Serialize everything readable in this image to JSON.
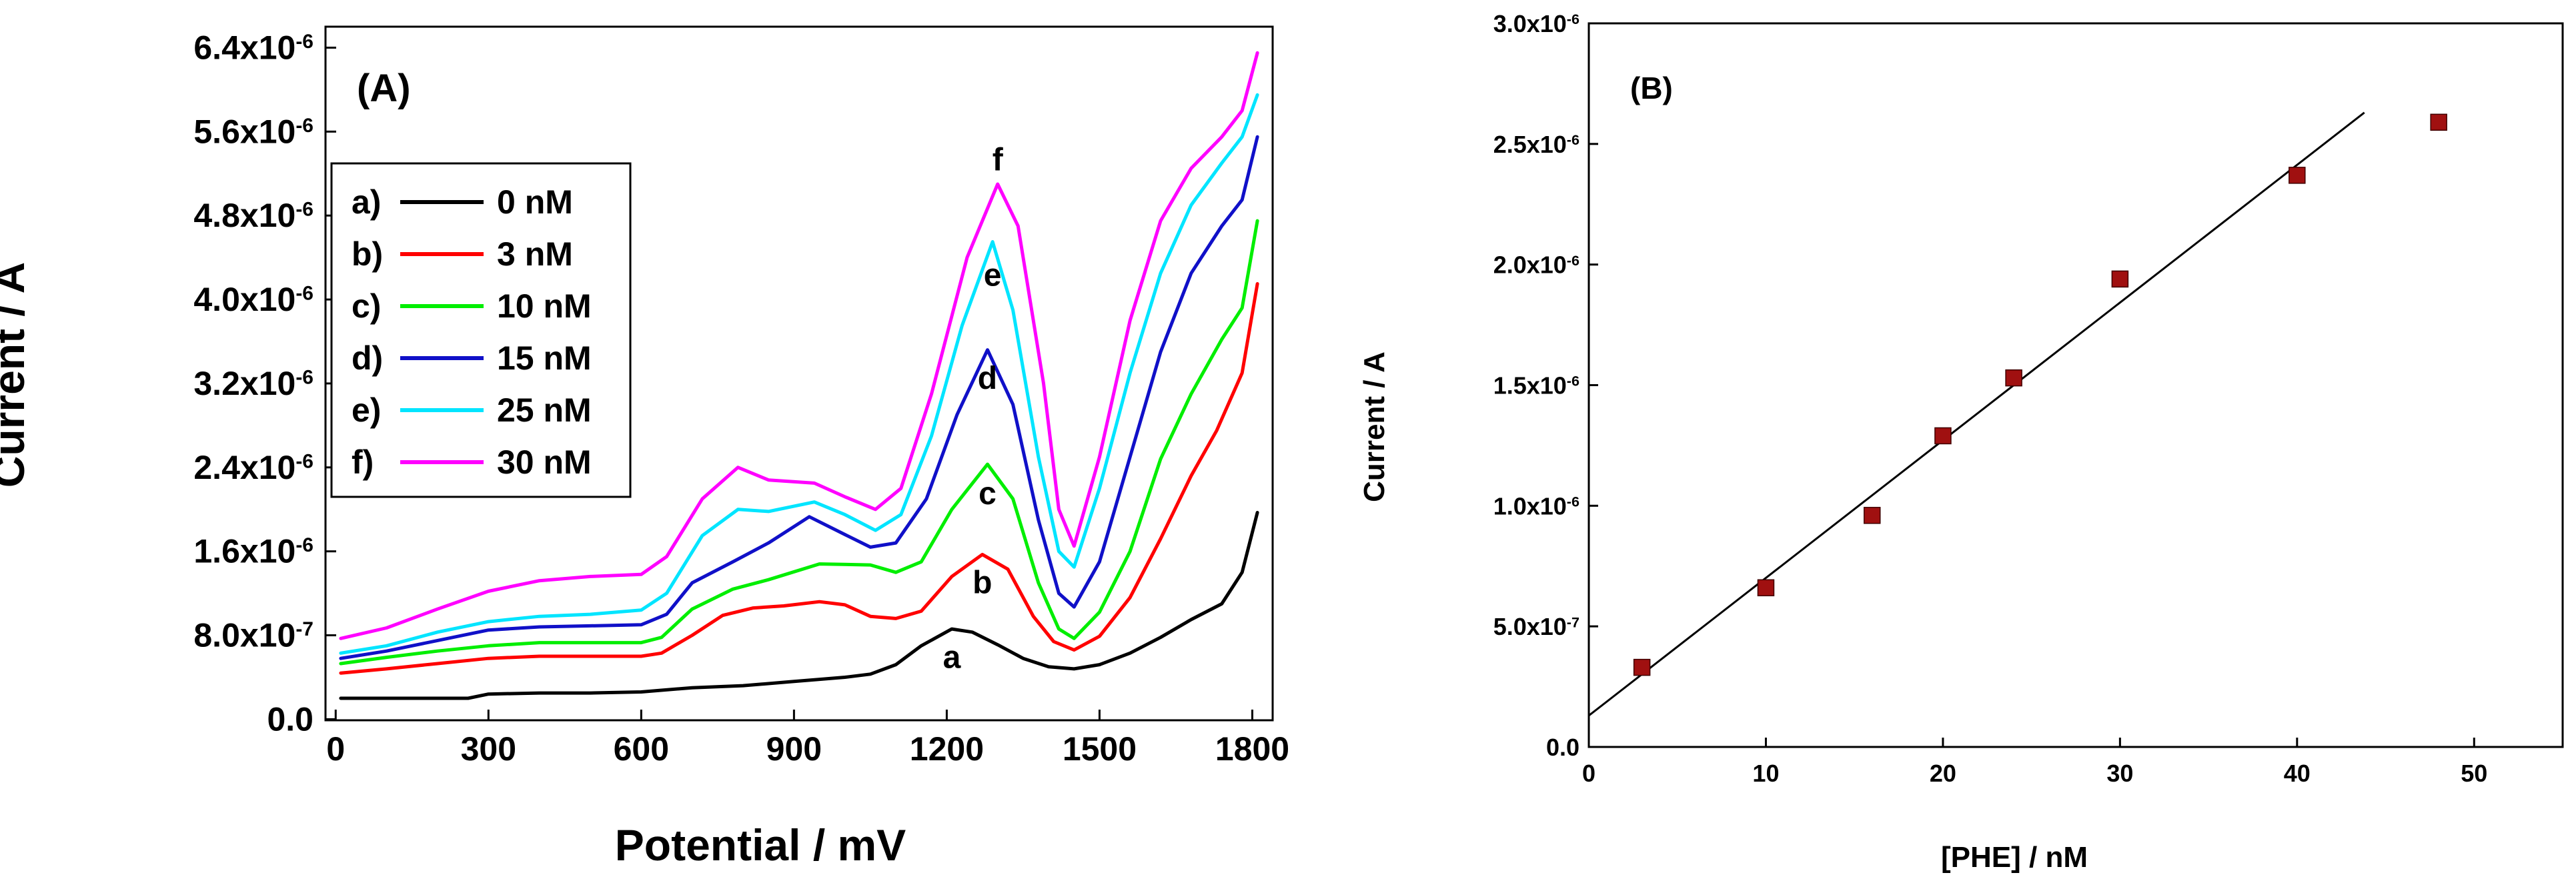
{
  "chart_data": [
    {
      "id": "A",
      "type": "line",
      "panel_label": "(A)",
      "xlabel": "Potential / mV",
      "ylabel": "Current / A",
      "xlim": [
        -20,
        1840
      ],
      "ylim": [
        -1e-08,
        6.6e-06
      ],
      "xticks": [
        0,
        300,
        600,
        900,
        1200,
        1500,
        1800
      ],
      "xtick_labels": [
        "0",
        "300",
        "600",
        "900",
        "1200",
        "1500",
        "1800"
      ],
      "yticks": [
        0,
        8e-07,
        1.6e-06,
        2.4e-06,
        3.2e-06,
        4e-06,
        4.8e-06,
        5.6e-06,
        6.4e-06
      ],
      "ytick_labels": [
        {
          "mant": "0.0",
          "exp": ""
        },
        {
          "mant": "8.0x10",
          "exp": "-7"
        },
        {
          "mant": "1.6x10",
          "exp": "-6"
        },
        {
          "mant": "2.4x10",
          "exp": "-6"
        },
        {
          "mant": "3.2x10",
          "exp": "-6"
        },
        {
          "mant": "4.0x10",
          "exp": "-6"
        },
        {
          "mant": "4.8x10",
          "exp": "-6"
        },
        {
          "mant": "5.6x10",
          "exp": "-6"
        },
        {
          "mant": "6.4x10",
          "exp": "-6"
        }
      ],
      "legend": [
        {
          "key": "a)",
          "label": "0 nM"
        },
        {
          "key": "b)",
          "label": "3 nM"
        },
        {
          "key": "c)",
          "label": "10 nM"
        },
        {
          "key": "d)",
          "label": "15 nM"
        },
        {
          "key": "e)",
          "label": "25 nM"
        },
        {
          "key": "f)",
          "label": "30 nM"
        }
      ],
      "series": [
        {
          "name": "0 nM",
          "tag": "a",
          "color": "#000000",
          "points": [
            [
              10,
              2e-07
            ],
            [
              100,
              2e-07
            ],
            [
              200,
              2e-07
            ],
            [
              260,
              2e-07
            ],
            [
              300,
              2.4e-07
            ],
            [
              400,
              2.5e-07
            ],
            [
              500,
              2.5e-07
            ],
            [
              600,
              2.6e-07
            ],
            [
              700,
              3e-07
            ],
            [
              800,
              3.2e-07
            ],
            [
              900,
              3.6e-07
            ],
            [
              1000,
              4e-07
            ],
            [
              1050,
              4.3e-07
            ],
            [
              1100,
              5.2e-07
            ],
            [
              1150,
              7e-07
            ],
            [
              1210,
              8.6e-07
            ],
            [
              1250,
              8.3e-07
            ],
            [
              1300,
              7.1e-07
            ],
            [
              1350,
              5.8e-07
            ],
            [
              1400,
              5e-07
            ],
            [
              1450,
              4.8e-07
            ],
            [
              1500,
              5.2e-07
            ],
            [
              1560,
              6.3e-07
            ],
            [
              1620,
              7.8e-07
            ],
            [
              1680,
              9.5e-07
            ],
            [
              1740,
              1.1e-06
            ],
            [
              1780,
              1.4e-06
            ],
            [
              1810,
              1.97e-06
            ]
          ],
          "label_pos": [
            1210,
            4.9e-07
          ]
        },
        {
          "name": "3 nM",
          "tag": "b",
          "color": "#ff0000",
          "points": [
            [
              10,
              4.4e-07
            ],
            [
              100,
              4.8e-07
            ],
            [
              200,
              5.3e-07
            ],
            [
              300,
              5.8e-07
            ],
            [
              400,
              6e-07
            ],
            [
              500,
              6e-07
            ],
            [
              600,
              6e-07
            ],
            [
              640,
              6.3e-07
            ],
            [
              700,
              8e-07
            ],
            [
              760,
              9.9e-07
            ],
            [
              820,
              1.06e-06
            ],
            [
              880,
              1.08e-06
            ],
            [
              950,
              1.12e-06
            ],
            [
              1000,
              1.09e-06
            ],
            [
              1050,
              9.8e-07
            ],
            [
              1100,
              9.6e-07
            ],
            [
              1150,
              1.03e-06
            ],
            [
              1210,
              1.36e-06
            ],
            [
              1270,
              1.57e-06
            ],
            [
              1320,
              1.43e-06
            ],
            [
              1370,
              9.8e-07
            ],
            [
              1410,
              7.4e-07
            ],
            [
              1450,
              6.6e-07
            ],
            [
              1500,
              7.9e-07
            ],
            [
              1560,
              1.16e-06
            ],
            [
              1620,
              1.72e-06
            ],
            [
              1680,
              2.32e-06
            ],
            [
              1730,
              2.75e-06
            ],
            [
              1780,
              3.3e-06
            ],
            [
              1810,
              4.15e-06
            ]
          ],
          "label_pos": [
            1270,
            1.2e-06
          ]
        },
        {
          "name": "10 nM",
          "tag": "c",
          "color": "#00ee00",
          "points": [
            [
              10,
              5.3e-07
            ],
            [
              100,
              5.9e-07
            ],
            [
              200,
              6.5e-07
            ],
            [
              300,
              7e-07
            ],
            [
              400,
              7.3e-07
            ],
            [
              500,
              7.3e-07
            ],
            [
              600,
              7.3e-07
            ],
            [
              640,
              7.8e-07
            ],
            [
              700,
              1.05e-06
            ],
            [
              780,
              1.24e-06
            ],
            [
              850,
              1.33e-06
            ],
            [
              950,
              1.48e-06
            ],
            [
              1050,
              1.47e-06
            ],
            [
              1100,
              1.4e-06
            ],
            [
              1150,
              1.5e-06
            ],
            [
              1210,
              2e-06
            ],
            [
              1280,
              2.43e-06
            ],
            [
              1330,
              2.1e-06
            ],
            [
              1380,
              1.3e-06
            ],
            [
              1420,
              8.6e-07
            ],
            [
              1450,
              7.7e-07
            ],
            [
              1500,
              1.02e-06
            ],
            [
              1560,
              1.6e-06
            ],
            [
              1620,
              2.48e-06
            ],
            [
              1680,
              3.1e-06
            ],
            [
              1740,
              3.62e-06
            ],
            [
              1780,
              3.92e-06
            ],
            [
              1810,
              4.75e-06
            ]
          ],
          "label_pos": [
            1280,
            2.05e-06
          ]
        },
        {
          "name": "15 nM",
          "tag": "d",
          "color": "#1010c8",
          "points": [
            [
              10,
              5.8e-07
            ],
            [
              100,
              6.5e-07
            ],
            [
              200,
              7.5e-07
            ],
            [
              300,
              8.5e-07
            ],
            [
              400,
              8.8e-07
            ],
            [
              500,
              8.9e-07
            ],
            [
              600,
              9e-07
            ],
            [
              650,
              1e-06
            ],
            [
              700,
              1.3e-06
            ],
            [
              780,
              1.5e-06
            ],
            [
              850,
              1.68e-06
            ],
            [
              930,
              1.93e-06
            ],
            [
              1000,
              1.76e-06
            ],
            [
              1050,
              1.64e-06
            ],
            [
              1100,
              1.68e-06
            ],
            [
              1160,
              2.1e-06
            ],
            [
              1220,
              2.9e-06
            ],
            [
              1280,
              3.52e-06
            ],
            [
              1330,
              3e-06
            ],
            [
              1380,
              1.9e-06
            ],
            [
              1420,
              1.2e-06
            ],
            [
              1450,
              1.07e-06
            ],
            [
              1500,
              1.5e-06
            ],
            [
              1560,
              2.5e-06
            ],
            [
              1620,
              3.5e-06
            ],
            [
              1680,
              4.25e-06
            ],
            [
              1740,
              4.7e-06
            ],
            [
              1780,
              4.95e-06
            ],
            [
              1810,
              5.55e-06
            ]
          ],
          "label_pos": [
            1280,
            3.15e-06
          ]
        },
        {
          "name": "25 nM",
          "tag": "e",
          "color": "#00e5ff",
          "points": [
            [
              10,
              6.3e-07
            ],
            [
              100,
              7e-07
            ],
            [
              200,
              8.3e-07
            ],
            [
              300,
              9.3e-07
            ],
            [
              400,
              9.8e-07
            ],
            [
              500,
              1e-06
            ],
            [
              600,
              1.04e-06
            ],
            [
              650,
              1.2e-06
            ],
            [
              720,
              1.75e-06
            ],
            [
              790,
              2e-06
            ],
            [
              850,
              1.98e-06
            ],
            [
              940,
              2.07e-06
            ],
            [
              1000,
              1.95e-06
            ],
            [
              1060,
              1.8e-06
            ],
            [
              1110,
              1.95e-06
            ],
            [
              1170,
              2.7e-06
            ],
            [
              1230,
              3.75e-06
            ],
            [
              1290,
              4.55e-06
            ],
            [
              1330,
              3.9e-06
            ],
            [
              1380,
              2.5e-06
            ],
            [
              1420,
              1.6e-06
            ],
            [
              1450,
              1.45e-06
            ],
            [
              1500,
              2.2e-06
            ],
            [
              1560,
              3.3e-06
            ],
            [
              1620,
              4.25e-06
            ],
            [
              1680,
              4.9e-06
            ],
            [
              1740,
              5.3e-06
            ],
            [
              1780,
              5.55e-06
            ],
            [
              1810,
              5.95e-06
            ]
          ],
          "label_pos": [
            1290,
            4.13e-06
          ]
        },
        {
          "name": "30 nM",
          "tag": "f",
          "color": "#ff00ff",
          "points": [
            [
              10,
              7.7e-07
            ],
            [
              100,
              8.7e-07
            ],
            [
              200,
              1.05e-06
            ],
            [
              300,
              1.22e-06
            ],
            [
              400,
              1.32e-06
            ],
            [
              500,
              1.36e-06
            ],
            [
              600,
              1.38e-06
            ],
            [
              650,
              1.55e-06
            ],
            [
              720,
              2.1e-06
            ],
            [
              790,
              2.4e-06
            ],
            [
              850,
              2.28e-06
            ],
            [
              940,
              2.25e-06
            ],
            [
              1000,
              2.12e-06
            ],
            [
              1060,
              2e-06
            ],
            [
              1110,
              2.2e-06
            ],
            [
              1170,
              3.1e-06
            ],
            [
              1240,
              4.4e-06
            ],
            [
              1300,
              5.1e-06
            ],
            [
              1340,
              4.7e-06
            ],
            [
              1390,
              3.2e-06
            ],
            [
              1420,
              2e-06
            ],
            [
              1450,
              1.65e-06
            ],
            [
              1500,
              2.5e-06
            ],
            [
              1560,
              3.8e-06
            ],
            [
              1620,
              4.75e-06
            ],
            [
              1680,
              5.25e-06
            ],
            [
              1740,
              5.55e-06
            ],
            [
              1780,
              5.8e-06
            ],
            [
              1810,
              6.35e-06
            ]
          ],
          "label_pos": [
            1300,
            5.23e-06
          ]
        }
      ]
    },
    {
      "id": "B",
      "type": "scatter",
      "panel_label": "(B)",
      "xlabel": "[PHE] / nM",
      "ylabel": "Current / A",
      "xlim": [
        0,
        55
      ],
      "ylim": [
        0,
        3e-06
      ],
      "xticks": [
        0,
        10,
        20,
        30,
        40,
        50
      ],
      "xtick_labels": [
        "0",
        "10",
        "20",
        "30",
        "40",
        "50"
      ],
      "yticks": [
        0,
        5e-07,
        1e-06,
        1.5e-06,
        2e-06,
        2.5e-06,
        3e-06
      ],
      "ytick_labels": [
        {
          "mant": "0.0",
          "exp": ""
        },
        {
          "mant": "5.0x10",
          "exp": "-7"
        },
        {
          "mant": "1.0x10",
          "exp": "-6"
        },
        {
          "mant": "1.5x10",
          "exp": "-6"
        },
        {
          "mant": "2.0x10",
          "exp": "-6"
        },
        {
          "mant": "2.5x10",
          "exp": "-6"
        },
        {
          "mant": "3.0x10",
          "exp": "-6"
        }
      ],
      "marker_color": "#a01010",
      "points": [
        [
          3,
          3.3e-07
        ],
        [
          10,
          6.6e-07
        ],
        [
          16,
          9.6e-07
        ],
        [
          20,
          1.29e-06
        ],
        [
          24,
          1.53e-06
        ],
        [
          30,
          1.94e-06
        ],
        [
          40,
          2.37e-06
        ],
        [
          48,
          2.59e-06
        ]
      ],
      "fit_line": {
        "x0": 0,
        "y0": 1.3e-07,
        "x1": 43.8,
        "y1": 2.63e-06
      }
    }
  ]
}
